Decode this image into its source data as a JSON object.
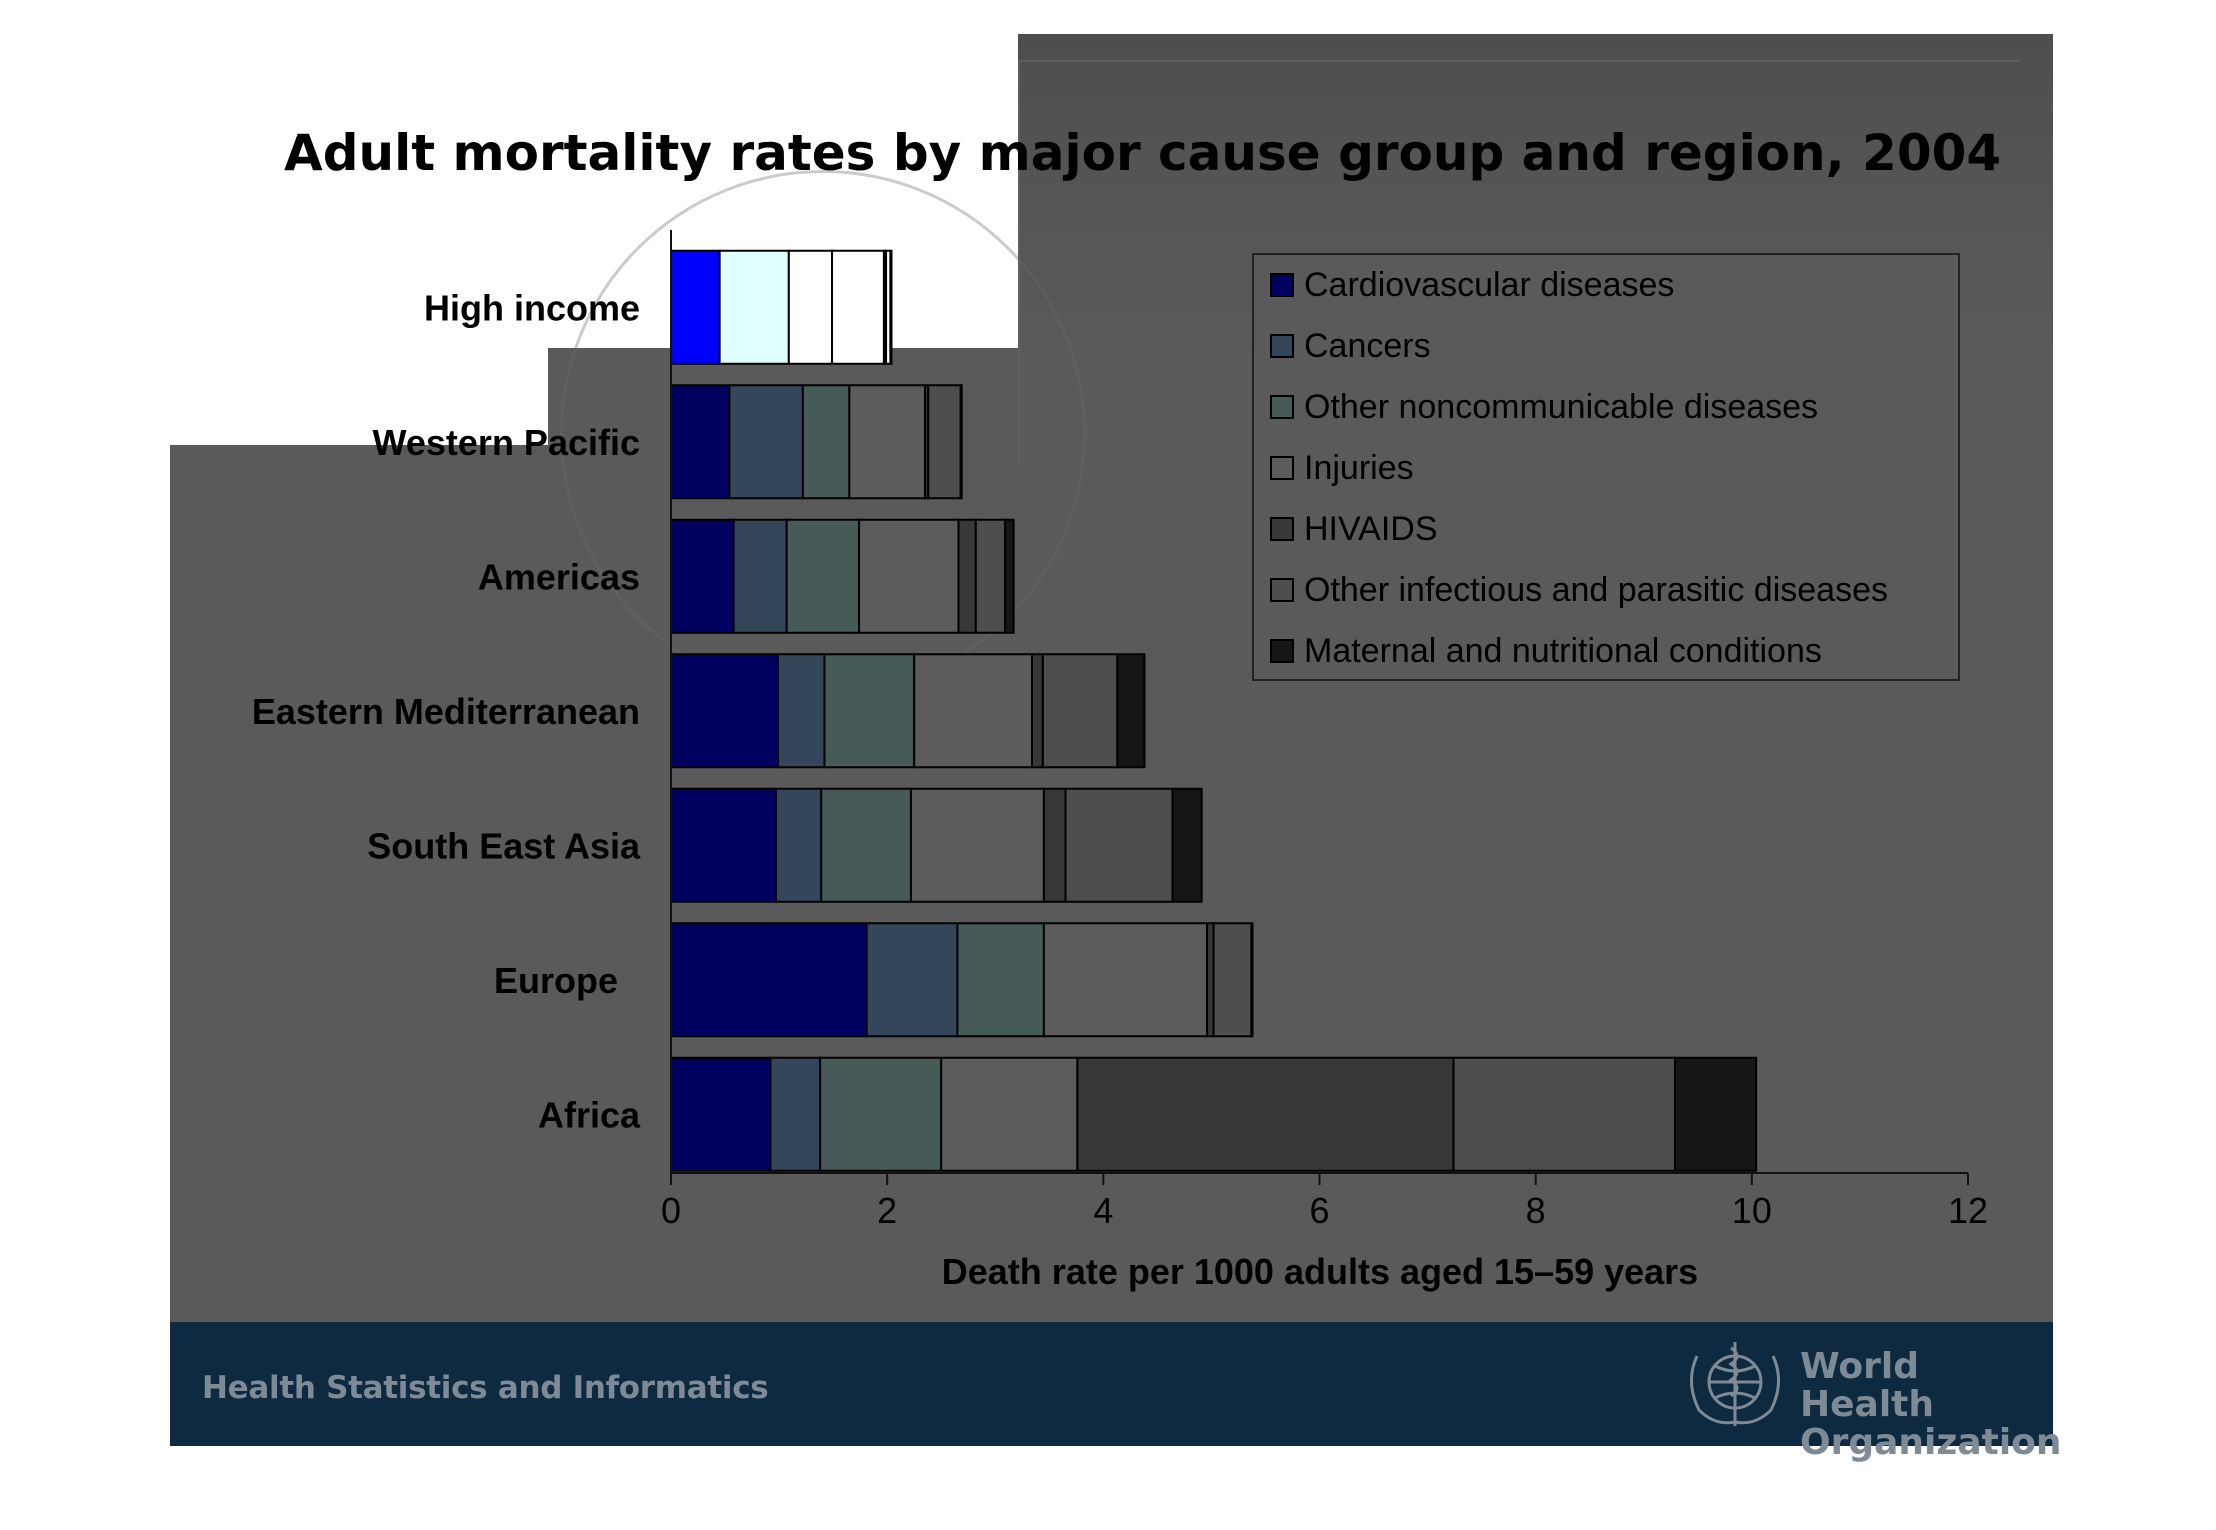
{
  "footer": {
    "text": "Health Statistics and Informatics",
    "org_line1": "World Health",
    "org_line2": "Organization",
    "logo_icon": "who-emblem-icon"
  },
  "colors": {
    "panel": "#5a5a5a",
    "footer": "#0e2a40",
    "series": [
      "#000060",
      "#34475a",
      "#465b58",
      "#5c5c5c",
      "#383838",
      "#4e4e4e",
      "#161616"
    ],
    "high_income_series": [
      "#0000ff",
      "#e0ffff",
      "#ffffff",
      "#ffffff",
      "#3a3a3a",
      "#ffffff",
      "#111111"
    ]
  },
  "chart_data": {
    "type": "bar",
    "orientation": "horizontal",
    "stacked": true,
    "title": "Adult mortality rates by major cause group and region, 2004",
    "xlabel": "Death rate per 1000 adults aged 15–59 years",
    "ylabel": "",
    "xlim": [
      0,
      12
    ],
    "xticks": [
      0,
      2,
      4,
      6,
      8,
      10,
      12
    ],
    "grid": false,
    "legend_position": "top-right",
    "categories": [
      "High income",
      "Western Pacific",
      "Americas",
      "Eastern Mediterranean",
      "South East Asia",
      "Europe",
      "Africa"
    ],
    "series": [
      {
        "name": "Cardiovascular diseases",
        "values": [
          0.45,
          0.54,
          0.58,
          0.99,
          0.97,
          1.81,
          0.92
        ]
      },
      {
        "name": "Cancers",
        "values": [
          0.64,
          0.68,
          0.49,
          0.43,
          0.42,
          0.84,
          0.46
        ]
      },
      {
        "name": "Other noncommunicable diseases",
        "values": [
          0.4,
          0.43,
          0.67,
          0.83,
          0.83,
          0.8,
          1.12
        ]
      },
      {
        "name": "Injuries",
        "values": [
          0.48,
          0.7,
          0.92,
          1.09,
          1.23,
          1.51,
          1.26
        ]
      },
      {
        "name": "HIVAIDS",
        "values": [
          0.02,
          0.03,
          0.16,
          0.1,
          0.2,
          0.06,
          3.48
        ]
      },
      {
        "name": "Other infectious and parasitic diseases",
        "values": [
          0.04,
          0.3,
          0.27,
          0.69,
          0.99,
          0.35,
          2.05
        ]
      },
      {
        "name": "Maternal and nutritional conditions",
        "values": [
          0.01,
          0.01,
          0.08,
          0.25,
          0.27,
          0.01,
          0.75
        ]
      }
    ]
  }
}
